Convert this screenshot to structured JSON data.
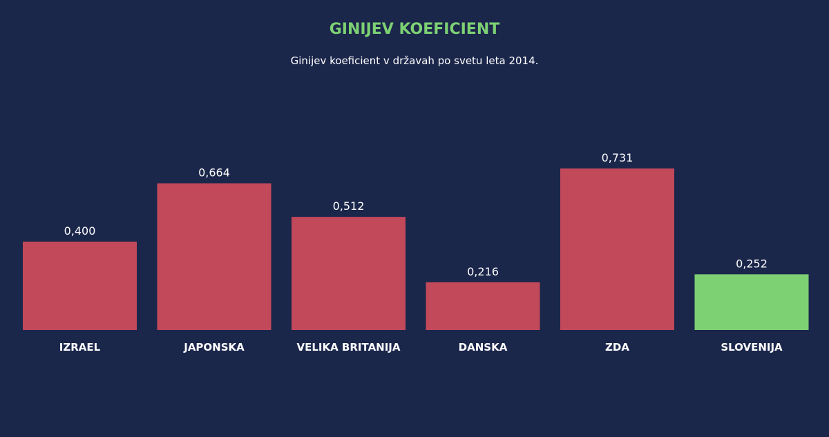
{
  "chart_data": {
    "type": "bar",
    "title": "GINIJEV KOEFICIENT",
    "subtitle": "Ginijev koeficient v državah po svetu leta 2014.",
    "categories": [
      "IZRAEL",
      "JAPONSKA",
      "VELIKA BRITANIJA",
      "DANSKA",
      "ZDA",
      "SLOVENIJA"
    ],
    "values": [
      0.4,
      0.664,
      0.512,
      0.216,
      0.731,
      0.252
    ],
    "value_labels": [
      "0,400",
      "0,664",
      "0,512",
      "0,216",
      "0,731",
      "0,252"
    ],
    "highlight_category": "SLOVENIJA",
    "colors": {
      "background": "#1b264b",
      "bar": "#c2495a",
      "highlight_bar": "#7dd173",
      "title": "#7dd173",
      "text": "#ffffff"
    },
    "ylim": [
      0,
      0.8
    ],
    "grid": false,
    "legend": "none"
  }
}
